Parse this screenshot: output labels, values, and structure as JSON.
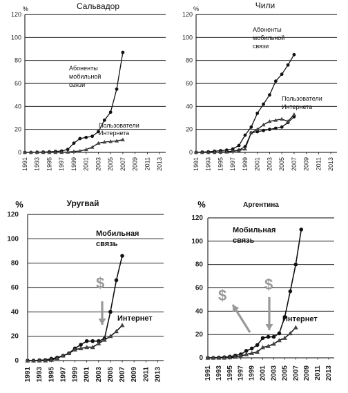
{
  "chart_data": [
    {
      "type": "line",
      "title": "Сальвадор",
      "ylabel": "%",
      "ylim": [
        0,
        120
      ],
      "yticks": [
        "0",
        "20",
        "40",
        "60",
        "80",
        "100",
        "120"
      ],
      "xlim": [
        1991,
        2014
      ],
      "xticks": [
        "1991",
        "1993",
        "1995",
        "1997",
        "1999",
        "2001",
        "2003",
        "2005",
        "2007",
        "2009",
        "2011",
        "2013"
      ],
      "grid": true,
      "annotations": [
        {
          "text": "Абоненты\nмобильной\nсвязи"
        },
        {
          "text": "Пользователи\nИнтернета"
        }
      ],
      "series": [
        {
          "marker": "circle",
          "x": [
            1991,
            1992,
            1993,
            1994,
            1995,
            1996,
            1997,
            1998,
            1999,
            2000,
            2001,
            2002,
            2003,
            2004,
            2005,
            2006,
            2007
          ],
          "y": [
            0,
            0,
            0.2,
            0.3,
            0.5,
            0.8,
            1.2,
            2.5,
            8,
            12,
            13,
            14,
            18,
            28,
            35,
            55,
            87
          ]
        },
        {
          "marker": "triangle",
          "x": [
            1991,
            1992,
            1993,
            1994,
            1995,
            1996,
            1997,
            1998,
            1999,
            2000,
            2001,
            2002,
            2003,
            2004,
            2005,
            2006,
            2007
          ],
          "y": [
            0,
            0,
            0,
            0,
            0,
            0,
            0.1,
            0.3,
            0.8,
            1.2,
            2.5,
            4.5,
            8,
            9,
            9.5,
            10,
            11
          ]
        }
      ]
    },
    {
      "type": "line",
      "title": "Чили",
      "ylabel": "%",
      "ylim": [
        0,
        120
      ],
      "yticks": [
        "0",
        "20",
        "40",
        "60",
        "80",
        "100",
        "120"
      ],
      "xlim": [
        1991,
        2014
      ],
      "xticks": [
        "1991",
        "1993",
        "1995",
        "1997",
        "1999",
        "2001",
        "2003",
        "2005",
        "2007",
        "2009",
        "2011",
        "2013"
      ],
      "grid": true,
      "annotations": [
        {
          "text": "Абоненты\nмобильной\nсвязи"
        },
        {
          "text": "Пользователи\nИнтернета"
        }
      ],
      "series": [
        {
          "marker": "circle",
          "x": [
            1991,
            1992,
            1993,
            1994,
            1995,
            1996,
            1997,
            1998,
            1999,
            2000,
            2001,
            2002,
            2003,
            2004,
            2005,
            2006,
            2007
          ],
          "y": [
            0,
            0.3,
            0.5,
            1,
            1.5,
            2,
            3,
            6,
            15,
            22,
            34,
            42,
            50,
            62,
            68,
            76,
            85
          ]
        },
        {
          "marker": "circle",
          "x": [
            1991,
            1992,
            1993,
            1994,
            1995,
            1996,
            1997,
            1998,
            1999,
            2000,
            2001,
            2002,
            2003,
            2004,
            2005,
            2006,
            2007
          ],
          "y": [
            0,
            0,
            0,
            0,
            0.3,
            0.5,
            1,
            2,
            5,
            17,
            18,
            19,
            20,
            21,
            22,
            26,
            31
          ]
        },
        {
          "marker": "triangle",
          "x": [
            1991,
            1992,
            1993,
            1994,
            1995,
            1996,
            1997,
            1998,
            1999,
            2000,
            2001,
            2002,
            2003,
            2004,
            2005,
            2006,
            2007
          ],
          "y": [
            0,
            0,
            0,
            0,
            0.2,
            0.4,
            1,
            1.5,
            3,
            17,
            20,
            24,
            27,
            28,
            29,
            27,
            33
          ]
        }
      ]
    },
    {
      "type": "line",
      "title": "Уругвай",
      "ylabel": "%",
      "ylim": [
        0,
        120
      ],
      "yticks": [
        "0",
        "20",
        "40",
        "60",
        "80",
        "100",
        "120"
      ],
      "xlim": [
        1991,
        2014
      ],
      "xticks": [
        "1991",
        "1993",
        "1995",
        "1997",
        "1999",
        "2001",
        "2003",
        "2005",
        "2007",
        "2009",
        "2011",
        "2013"
      ],
      "grid": true,
      "annotations": [
        {
          "text": "Мобильная\nсвязь"
        },
        {
          "text": "$"
        },
        {
          "text": "Интернет"
        }
      ],
      "series": [
        {
          "marker": "circle",
          "x": [
            1991,
            1992,
            1993,
            1994,
            1995,
            1996,
            1997,
            1998,
            1999,
            2000,
            2001,
            2002,
            2003,
            2004,
            2005,
            2006,
            2007
          ],
          "y": [
            0,
            0,
            0.3,
            0.5,
            1.5,
            2.5,
            4,
            6,
            10,
            13,
            16,
            16,
            16,
            18,
            40,
            66,
            86
          ]
        },
        {
          "marker": "triangle",
          "x": [
            1991,
            1992,
            1993,
            1994,
            1995,
            1996,
            1997,
            1998,
            1999,
            2000,
            2001,
            2002,
            2003,
            2004,
            2005,
            2006,
            2007
          ],
          "y": [
            0,
            0,
            0,
            0,
            0.5,
            2,
            4,
            6,
            9,
            10,
            11,
            11,
            14,
            17,
            20,
            24,
            29
          ]
        }
      ]
    },
    {
      "type": "line",
      "title": "Аргентина",
      "ylabel": "%",
      "ylim": [
        0,
        120
      ],
      "yticks": [
        "0",
        "20",
        "40",
        "60",
        "80",
        "100",
        "120"
      ],
      "xlim": [
        1991,
        2014
      ],
      "xticks": [
        "1991",
        "1993",
        "1995",
        "1997",
        "1999",
        "2001",
        "2003",
        "2005",
        "2007",
        "2009",
        "2011",
        "2013"
      ],
      "grid": true,
      "annotations": [
        {
          "text": "Мобильная\nсвязь"
        },
        {
          "text": "$"
        },
        {
          "text": "$"
        },
        {
          "text": "Интернет"
        }
      ],
      "series": [
        {
          "marker": "circle",
          "x": [
            1991,
            1992,
            1993,
            1994,
            1995,
            1996,
            1997,
            1998,
            1999,
            2000,
            2001,
            2002,
            2003,
            2004,
            2005,
            2006,
            2007,
            2008
          ],
          "y": [
            0,
            0,
            0.3,
            0.5,
            1,
            2,
            3,
            6,
            8,
            11,
            17,
            18,
            18,
            21,
            35,
            57,
            80,
            110
          ]
        },
        {
          "marker": "triangle",
          "x": [
            1991,
            1992,
            1993,
            1994,
            1995,
            1996,
            1997,
            1998,
            1999,
            2000,
            2001,
            2002,
            2003,
            2004,
            2005,
            2006,
            2007
          ],
          "y": [
            0,
            0,
            0,
            0,
            0.3,
            0.8,
            1.5,
            3,
            4,
            5,
            9,
            10,
            12,
            15,
            17,
            21,
            26
          ]
        }
      ]
    }
  ]
}
